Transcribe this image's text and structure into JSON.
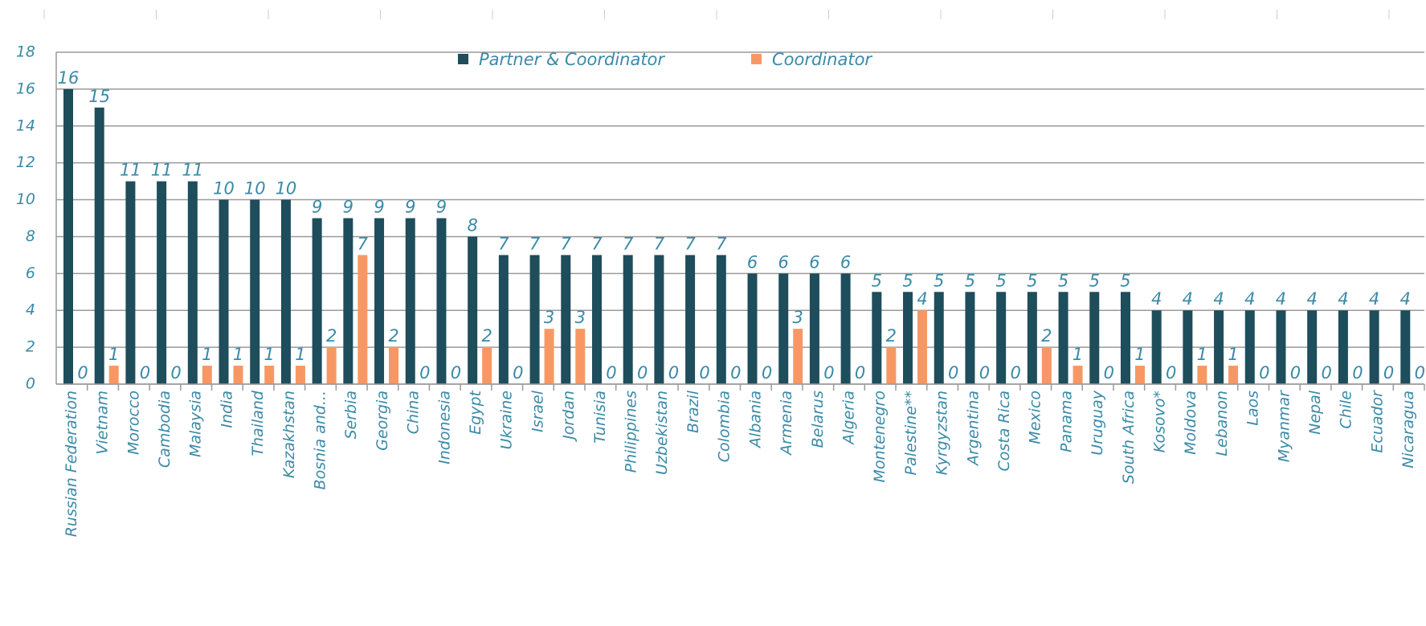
{
  "chart_data": {
    "type": "bar",
    "categories": [
      "Russian Federation",
      "Vietnam",
      "Morocco",
      "Cambodia",
      "Malaysia",
      "India",
      "Thailand",
      "Kazakhstan",
      "Bosnia and...",
      "Serbia",
      "Georgia",
      "China",
      "Indonesia",
      "Egypt",
      "Ukraine",
      "Israel",
      "Jordan",
      "Tunisia",
      "Philippines",
      "Uzbekistan",
      "Brazil",
      "Colombia",
      "Albania",
      "Armenia",
      "Belarus",
      "Algeria",
      "Montenegro",
      "Palestine**",
      "Kyrgyzstan",
      "Argentina",
      "Costa Rica",
      "Mexico",
      "Panama",
      "Uruguay",
      "South Africa",
      "Kosovo*",
      "Moldova",
      "Lebanon",
      "Laos",
      "Myanmar",
      "Nepal",
      "Chile",
      "Ecuador",
      "Nicaragua"
    ],
    "series": [
      {
        "name": "Partner & Coordinator",
        "color": "#1e4d5c",
        "values": [
          16,
          15,
          11,
          11,
          11,
          10,
          10,
          10,
          9,
          9,
          9,
          9,
          9,
          8,
          7,
          7,
          7,
          7,
          7,
          7,
          7,
          7,
          6,
          6,
          6,
          6,
          5,
          5,
          5,
          5,
          5,
          5,
          5,
          5,
          5,
          4,
          4,
          4,
          4,
          4,
          4,
          4,
          4,
          4
        ]
      },
      {
        "name": "Coordinator",
        "color": "#f79864",
        "values": [
          0,
          1,
          0,
          0,
          1,
          1,
          1,
          1,
          2,
          7,
          2,
          0,
          0,
          2,
          0,
          3,
          3,
          0,
          0,
          0,
          0,
          0,
          0,
          3,
          0,
          0,
          2,
          4,
          0,
          0,
          0,
          2,
          1,
          0,
          1,
          0,
          1,
          1,
          0,
          0,
          0,
          0,
          0,
          0
        ]
      }
    ],
    "ylim": [
      0,
      18
    ],
    "yticks": [
      0,
      2,
      4,
      6,
      8,
      10,
      12,
      14,
      16,
      18
    ],
    "grid": true,
    "legend": "top"
  }
}
